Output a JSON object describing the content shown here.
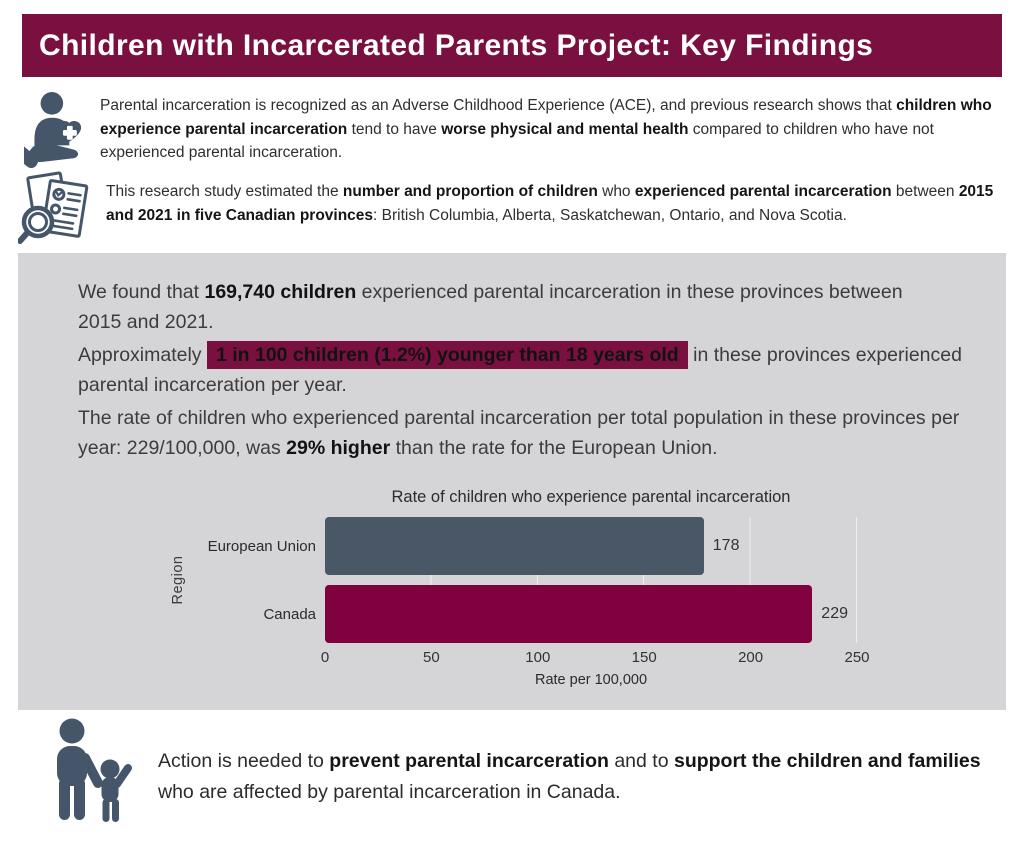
{
  "header": {
    "title": "Children with Incarcerated Parents Project: Key Findings"
  },
  "intro": {
    "paragraph1": {
      "icon": "heart-in-hand-icon",
      "segments": [
        {
          "text": "Parental incarceration is recognized as an Adverse Childhood Experience (ACE), and previous research shows that "
        },
        {
          "text": "children who experience parental incarceration",
          "bold": true
        },
        {
          "text": " tend to have "
        },
        {
          "text": "worse physical and mental health",
          "bold": true
        },
        {
          "text": " compared to children who have not experienced parental incarceration."
        }
      ]
    },
    "paragraph2": {
      "icon": "document-magnifier-icon",
      "segments": [
        {
          "text": "This research study estimated the "
        },
        {
          "text": "number and proportion of children",
          "bold": true
        },
        {
          "text": " who "
        },
        {
          "text": "experienced parental incarceration",
          "bold": true
        },
        {
          "text": " between "
        },
        {
          "text": "2015 and 2021 in five Canadian provinces",
          "bold": true
        },
        {
          "text": ": British Columbia, Alberta, Saskatchewan, Ontario, and Nova Scotia."
        }
      ]
    }
  },
  "findings": {
    "paragraphs": [
      {
        "segments": [
          {
            "text": "We found that "
          },
          {
            "text": "169,740 children",
            "bold": true
          },
          {
            "text": " experienced parental incarceration in these provinces between 2015 and 2021."
          }
        ]
      },
      {
        "segments": [
          {
            "text": "Approximately "
          },
          {
            "text": "1 in 100 children (1.2%) younger than 18 years old",
            "bold": true,
            "highlight": true
          },
          {
            "text": "  in these provinces experienced parental incarceration per year."
          }
        ]
      },
      {
        "segments": [
          {
            "text": "The rate of children who experienced parental incarceration per total population in these provinces per year: 229/100,000, was "
          },
          {
            "text": "29% higher",
            "bold": true
          },
          {
            "text": " than the rate for the European Union."
          }
        ]
      }
    ]
  },
  "chart_data": {
    "type": "bar",
    "orientation": "horizontal",
    "title": "Rate of children who experience parental incarceration",
    "categories": [
      "European Union",
      "Canada"
    ],
    "values": [
      178,
      229
    ],
    "bar_colors": [
      "#4a5766",
      "#80013f"
    ],
    "xlabel": "Rate per 100,000",
    "ylabel": "Region",
    "xlim": [
      0,
      250
    ],
    "xticks": [
      0,
      50,
      100,
      150,
      200,
      250
    ],
    "grid": "vertical-white-gridlines",
    "legend": "none"
  },
  "action": {
    "icon": "adult-child-icon",
    "segments": [
      {
        "text": "Action is needed to "
      },
      {
        "text": "prevent parental incarceration",
        "bold": true
      },
      {
        "text": " and to "
      },
      {
        "text": "support the children and families",
        "bold": true
      },
      {
        "text": " who are affected by parental incarceration in Canada."
      }
    ]
  },
  "colors": {
    "brand_maroon": "#7a1040",
    "highlight_bg": "#7a1040",
    "slate_icon": "#45566b",
    "panel_gray": "#d5d4d6",
    "bar_eu": "#4a5766",
    "bar_canada": "#80013f"
  }
}
